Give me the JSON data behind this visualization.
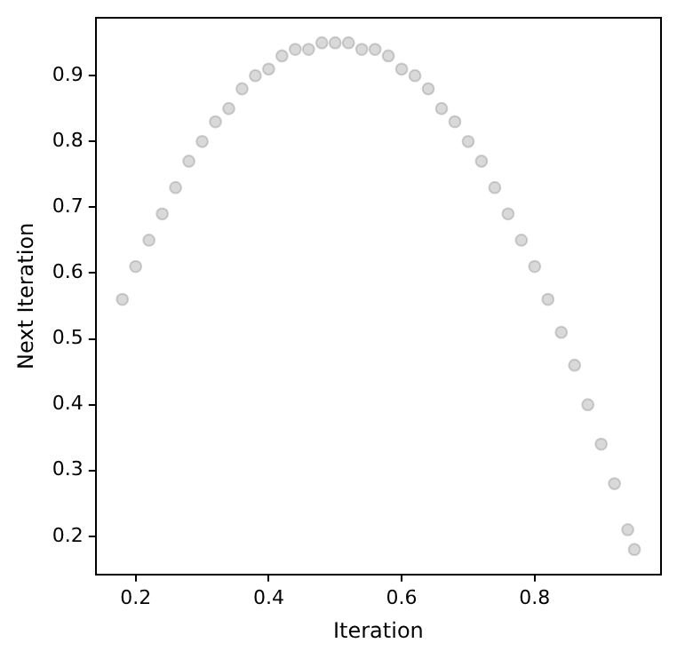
{
  "chart_data": {
    "type": "scatter",
    "xlabel": "Iteration",
    "ylabel": "Next Iteration",
    "x": [
      0.18,
      0.2,
      0.22,
      0.24,
      0.26,
      0.28,
      0.3,
      0.32,
      0.34,
      0.36,
      0.38,
      0.4,
      0.42,
      0.44,
      0.46,
      0.48,
      0.5,
      0.52,
      0.54,
      0.56,
      0.58,
      0.6,
      0.62,
      0.64,
      0.66,
      0.68,
      0.7,
      0.72,
      0.74,
      0.76,
      0.78,
      0.8,
      0.82,
      0.84,
      0.86,
      0.88,
      0.9,
      0.92,
      0.94,
      0.95
    ],
    "series": [
      {
        "color": "#808080",
        "values": [
          0.56,
          0.61,
          0.65,
          0.69,
          0.73,
          0.77,
          0.8,
          0.83,
          0.85,
          0.88,
          0.9,
          0.91,
          0.93,
          0.94,
          0.94,
          0.95,
          0.95,
          0.95,
          0.94,
          0.94,
          0.93,
          0.91,
          0.9,
          0.88,
          0.85,
          0.83,
          0.8,
          0.77,
          0.73,
          0.69,
          0.65,
          0.61,
          0.56,
          0.51,
          0.46,
          0.4,
          0.34,
          0.28,
          0.21,
          0.18
        ]
      }
    ],
    "xlim": [
      0.14,
      0.99
    ],
    "ylim": [
      0.142,
      0.988
    ],
    "xticks": [
      0.2,
      0.4,
      0.6,
      0.8
    ],
    "yticks": [
      0.2,
      0.3,
      0.4,
      0.5,
      0.6,
      0.7,
      0.8,
      0.9
    ],
    "grid": false,
    "legend": false,
    "marker": "circle"
  }
}
